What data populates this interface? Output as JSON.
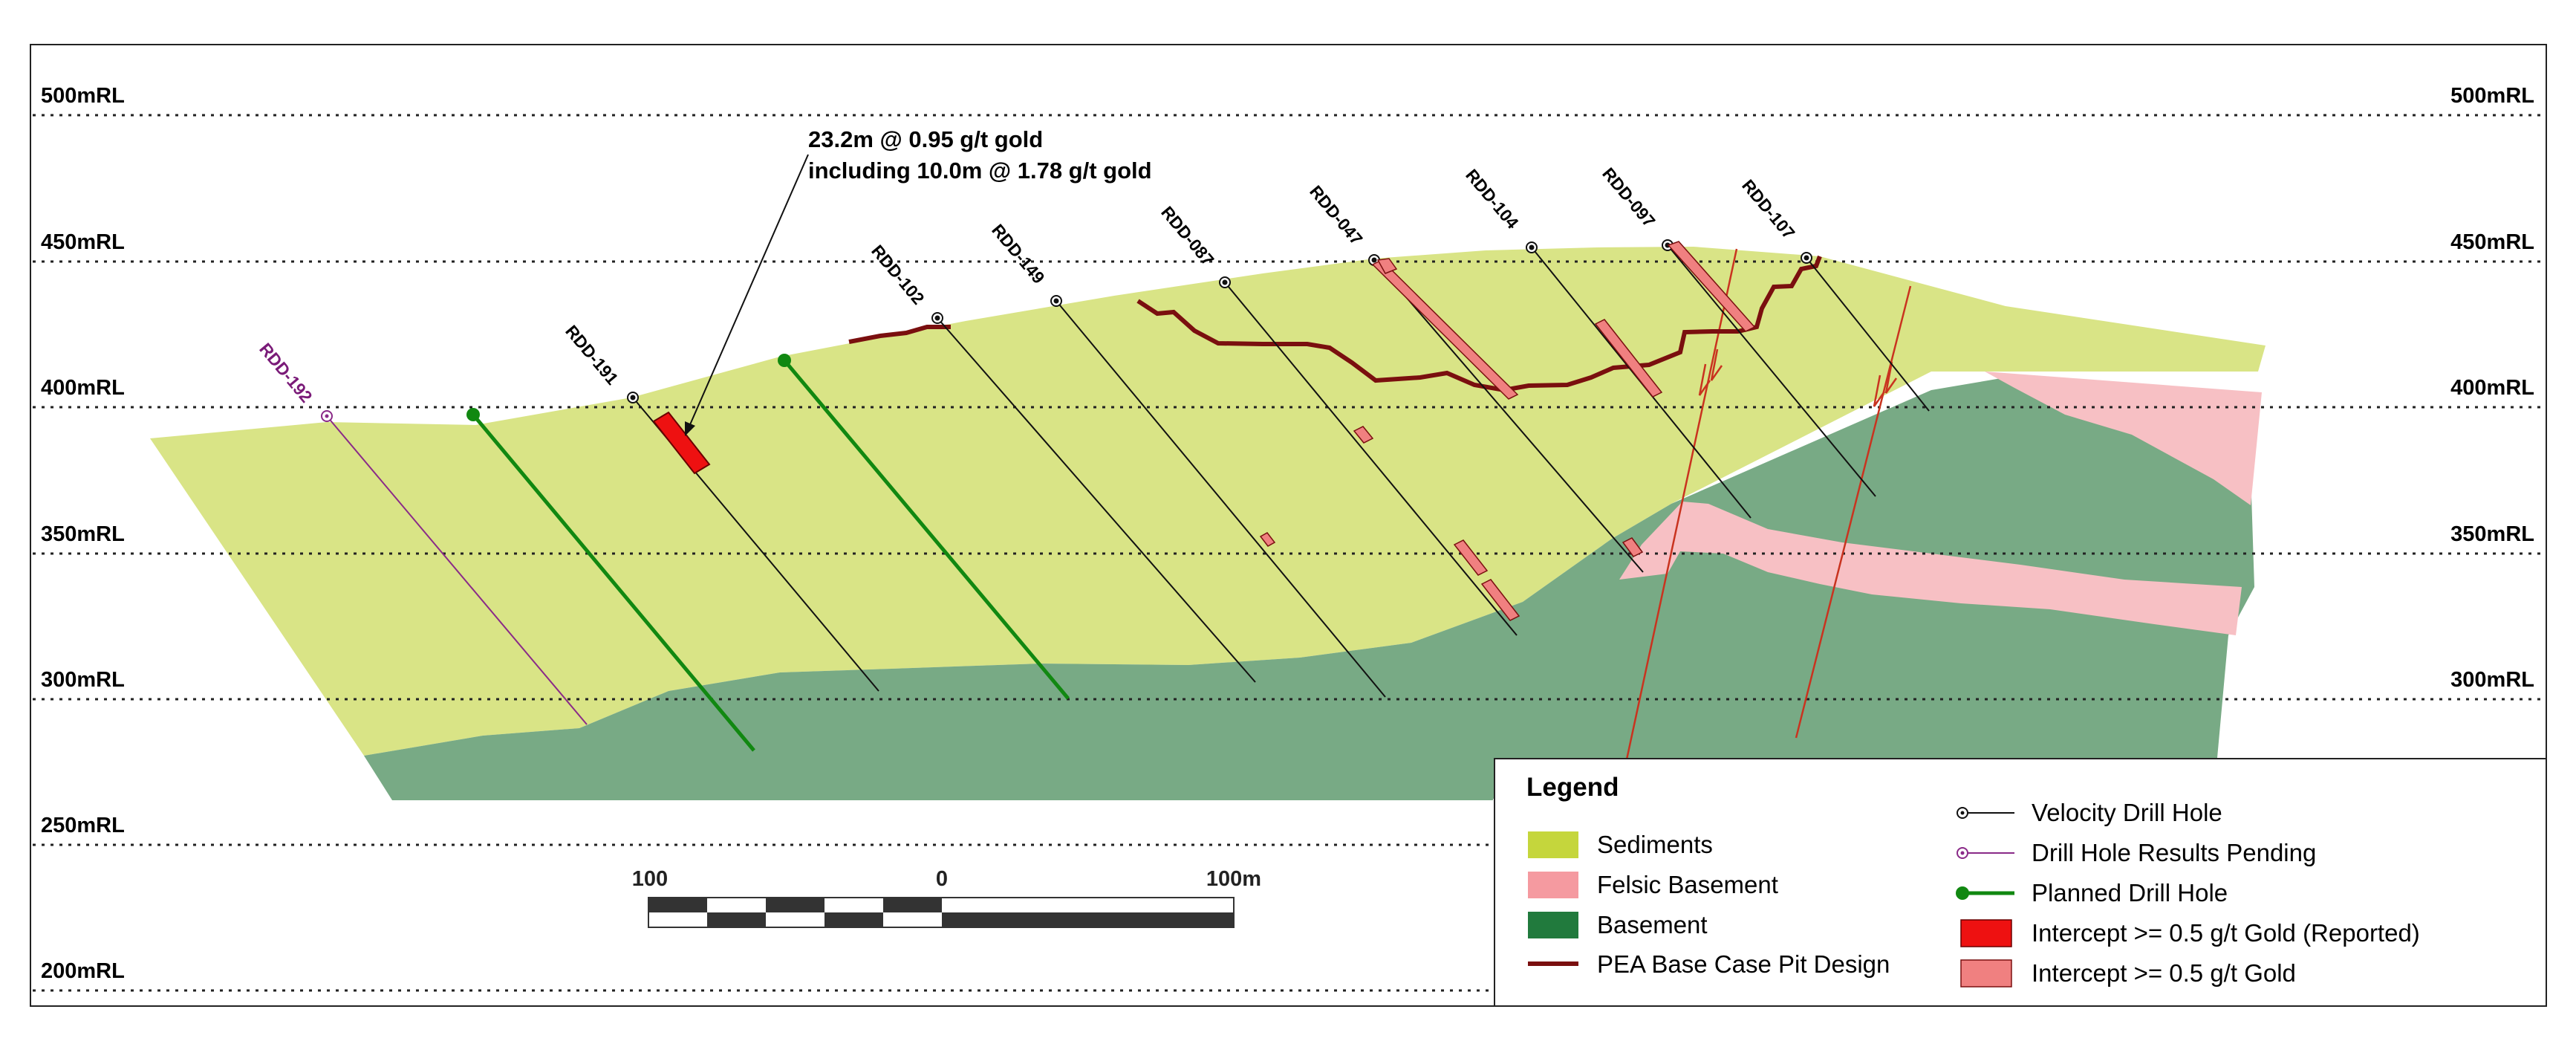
{
  "rl_labels": [
    "500mRL",
    "450mRL",
    "400mRL",
    "350mRL",
    "300mRL",
    "250mRL",
    "200mRL"
  ],
  "drill_holes": {
    "rdd_192": "RDD-192",
    "rdd_191": "RDD-191",
    "rdd_102": "RDD-102",
    "rdd_149": "RDD-149",
    "rdd_087": "RDD-087",
    "rdd_047": "RDD-047",
    "rdd_104": "RDD-104",
    "rdd_097": "RDD-097",
    "rdd_107": "RDD-107"
  },
  "annotation": {
    "line1": "23.2m @ 0.95 g/t gold",
    "line2": "including 10.0m @ 1.78 g/t gold"
  },
  "scale_bar": {
    "left": "100",
    "middle": "0",
    "right": "100m"
  },
  "legend": {
    "title": "Legend",
    "sediments": "Sediments",
    "felsic": "Felsic Basement",
    "basement": "Basement",
    "pit": "PEA Base Case Pit Design",
    "velocity": "Velocity Drill Hole",
    "pending": "Drill Hole Results Pending",
    "planned": "Planned Drill Hole",
    "reported": "Intercept >= 0.5 g/t Gold (Reported)",
    "intercept": "Intercept >= 0.5 g/t Gold"
  },
  "colors": {
    "sediments": "#d9e486",
    "sediments_swatch": "#c5d63c",
    "felsic": "#f7c0c4",
    "felsic_swatch": "#f59aa0",
    "basement": "#78aa85",
    "basement_swatch": "#217a3d",
    "pit": "#7a0f0f",
    "reported": "#ee1111",
    "intercept": "#f08080",
    "planned": "#118811",
    "pending": "#8a2a88",
    "fault": "#c9331f"
  }
}
